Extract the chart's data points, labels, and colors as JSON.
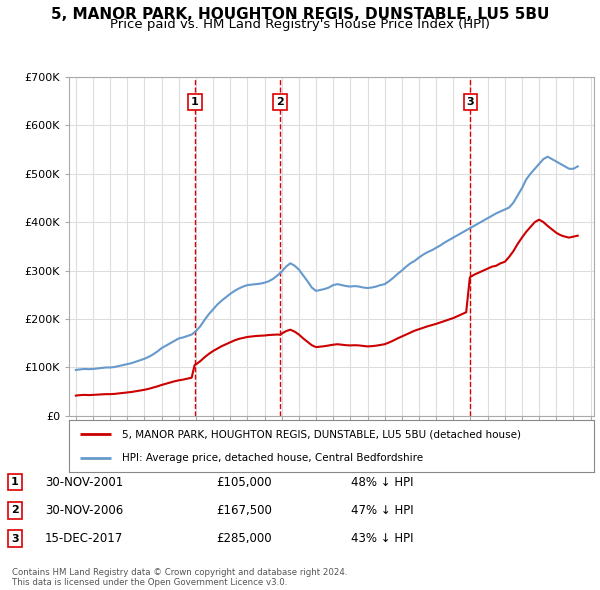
{
  "title": "5, MANOR PARK, HOUGHTON REGIS, DUNSTABLE, LU5 5BU",
  "subtitle": "Price paid vs. HM Land Registry's House Price Index (HPI)",
  "title_fontsize": 11,
  "subtitle_fontsize": 9.5,
  "background_color": "#ffffff",
  "plot_bg_color": "#ffffff",
  "grid_color": "#dddddd",
  "sale_color": "#cc0000",
  "hpi_color": "#6699cc",
  "vline_color": "#dd0000",
  "sale_annotations": [
    {
      "num": 1,
      "date": "30-NOV-2001",
      "price": "£105,000",
      "pct": "48% ↓ HPI"
    },
    {
      "num": 2,
      "date": "30-NOV-2006",
      "price": "£167,500",
      "pct": "47% ↓ HPI"
    },
    {
      "num": 3,
      "date": "15-DEC-2017",
      "price": "£285,000",
      "pct": "43% ↓ HPI"
    }
  ],
  "legend_house": "5, MANOR PARK, HOUGHTON REGIS, DUNSTABLE, LU5 5BU (detached house)",
  "legend_hpi": "HPI: Average price, detached house, Central Bedfordshire",
  "footer1": "Contains HM Land Registry data © Crown copyright and database right 2024.",
  "footer2": "This data is licensed under the Open Government Licence v3.0.",
  "ylim": [
    0,
    700000
  ],
  "yticks": [
    0,
    100000,
    200000,
    300000,
    400000,
    500000,
    600000,
    700000
  ],
  "ytick_labels": [
    "£0",
    "£100K",
    "£200K",
    "£300K",
    "£400K",
    "£500K",
    "£600K",
    "£700K"
  ],
  "hpi_x": [
    1995.0,
    1995.25,
    1995.5,
    1995.75,
    1996.0,
    1996.25,
    1996.5,
    1996.75,
    1997.0,
    1997.25,
    1997.5,
    1997.75,
    1998.0,
    1998.25,
    1998.5,
    1998.75,
    1999.0,
    1999.25,
    1999.5,
    1999.75,
    2000.0,
    2000.25,
    2000.5,
    2000.75,
    2001.0,
    2001.25,
    2001.5,
    2001.75,
    2002.0,
    2002.25,
    2002.5,
    2002.75,
    2003.0,
    2003.25,
    2003.5,
    2003.75,
    2004.0,
    2004.25,
    2004.5,
    2004.75,
    2005.0,
    2005.25,
    2005.5,
    2005.75,
    2006.0,
    2006.25,
    2006.5,
    2006.75,
    2007.0,
    2007.25,
    2007.5,
    2007.75,
    2008.0,
    2008.25,
    2008.5,
    2008.75,
    2009.0,
    2009.25,
    2009.5,
    2009.75,
    2010.0,
    2010.25,
    2010.5,
    2010.75,
    2011.0,
    2011.25,
    2011.5,
    2011.75,
    2012.0,
    2012.25,
    2012.5,
    2012.75,
    2013.0,
    2013.25,
    2013.5,
    2013.75,
    2014.0,
    2014.25,
    2014.5,
    2014.75,
    2015.0,
    2015.25,
    2015.5,
    2015.75,
    2016.0,
    2016.25,
    2016.5,
    2016.75,
    2017.0,
    2017.25,
    2017.5,
    2017.75,
    2018.0,
    2018.25,
    2018.5,
    2018.75,
    2019.0,
    2019.25,
    2019.5,
    2019.75,
    2020.0,
    2020.25,
    2020.5,
    2020.75,
    2021.0,
    2021.25,
    2021.5,
    2021.75,
    2022.0,
    2022.25,
    2022.5,
    2022.75,
    2023.0,
    2023.25,
    2023.5,
    2023.75,
    2024.0,
    2024.25
  ],
  "hpi_y": [
    95000,
    96000,
    97000,
    96500,
    97000,
    98000,
    99000,
    100000,
    100000,
    101000,
    103000,
    105000,
    107000,
    109000,
    112000,
    115000,
    118000,
    122000,
    127000,
    133000,
    140000,
    145000,
    150000,
    155000,
    160000,
    162000,
    165000,
    168000,
    175000,
    185000,
    198000,
    210000,
    220000,
    230000,
    238000,
    245000,
    252000,
    258000,
    263000,
    267000,
    270000,
    271000,
    272000,
    273000,
    275000,
    278000,
    283000,
    290000,
    298000,
    308000,
    315000,
    310000,
    302000,
    290000,
    278000,
    265000,
    258000,
    260000,
    262000,
    265000,
    270000,
    272000,
    270000,
    268000,
    267000,
    268000,
    267000,
    265000,
    264000,
    265000,
    267000,
    270000,
    272000,
    278000,
    285000,
    293000,
    300000,
    308000,
    315000,
    320000,
    327000,
    333000,
    338000,
    342000,
    347000,
    352000,
    358000,
    363000,
    368000,
    373000,
    378000,
    383000,
    388000,
    393000,
    398000,
    403000,
    408000,
    413000,
    418000,
    422000,
    426000,
    430000,
    440000,
    455000,
    470000,
    488000,
    500000,
    510000,
    520000,
    530000,
    535000,
    530000,
    525000,
    520000,
    515000,
    510000,
    510000,
    515000
  ],
  "sale_x": [
    1995.0,
    1995.25,
    1995.5,
    1995.75,
    1996.0,
    1996.25,
    1996.5,
    1996.75,
    1997.0,
    1997.25,
    1997.5,
    1997.75,
    1998.0,
    1998.25,
    1998.5,
    1998.75,
    1999.0,
    1999.25,
    1999.5,
    1999.75,
    2000.0,
    2000.25,
    2000.5,
    2000.75,
    2001.0,
    2001.25,
    2001.5,
    2001.75,
    2001.92,
    2002.0,
    2002.25,
    2002.5,
    2002.75,
    2003.0,
    2003.25,
    2003.5,
    2003.75,
    2004.0,
    2004.25,
    2004.5,
    2004.75,
    2005.0,
    2005.25,
    2005.5,
    2005.75,
    2006.0,
    2006.25,
    2006.5,
    2006.75,
    2006.92,
    2007.0,
    2007.25,
    2007.5,
    2007.75,
    2008.0,
    2008.25,
    2008.5,
    2008.75,
    2009.0,
    2009.25,
    2009.5,
    2009.75,
    2010.0,
    2010.25,
    2010.5,
    2010.75,
    2011.0,
    2011.25,
    2011.5,
    2011.75,
    2012.0,
    2012.25,
    2012.5,
    2012.75,
    2013.0,
    2013.25,
    2013.5,
    2013.75,
    2014.0,
    2014.25,
    2014.5,
    2014.75,
    2015.0,
    2015.25,
    2015.5,
    2015.75,
    2016.0,
    2016.25,
    2016.5,
    2016.75,
    2017.0,
    2017.25,
    2017.5,
    2017.75,
    2017.96,
    2018.0,
    2018.25,
    2018.5,
    2018.75,
    2019.0,
    2019.25,
    2019.5,
    2019.75,
    2020.0,
    2020.25,
    2020.5,
    2020.75,
    2021.0,
    2021.25,
    2021.5,
    2021.75,
    2022.0,
    2022.25,
    2022.5,
    2022.75,
    2023.0,
    2023.25,
    2023.5,
    2023.75,
    2024.0,
    2024.25
  ],
  "sale_y": [
    42000,
    43000,
    43500,
    43000,
    43500,
    44000,
    44500,
    45000,
    45000,
    45500,
    46500,
    47500,
    48500,
    49500,
    51000,
    52500,
    54000,
    56000,
    58500,
    61000,
    64000,
    66500,
    69000,
    71500,
    73500,
    75000,
    77000,
    79000,
    105000,
    106500,
    113000,
    121000,
    128000,
    134000,
    139000,
    144000,
    148000,
    152000,
    156000,
    159000,
    161000,
    163000,
    164000,
    165000,
    165500,
    166000,
    167000,
    167500,
    168000,
    167500,
    170000,
    175000,
    178000,
    174000,
    168000,
    160000,
    153000,
    146000,
    142000,
    143000,
    144000,
    145500,
    147000,
    148000,
    147000,
    146000,
    145500,
    146000,
    145500,
    144500,
    143500,
    144000,
    145000,
    146500,
    148000,
    151500,
    155500,
    160000,
    164000,
    168000,
    172000,
    176000,
    179000,
    182000,
    185000,
    187500,
    190000,
    193000,
    196000,
    199000,
    202000,
    206000,
    210000,
    214000,
    285000,
    287000,
    292000,
    296000,
    300000,
    304000,
    308000,
    310000,
    315000,
    318000,
    328000,
    340000,
    355000,
    368000,
    380000,
    390000,
    400000,
    405000,
    400000,
    392000,
    385000,
    378000,
    373000,
    370000,
    368000,
    370000,
    372000
  ]
}
